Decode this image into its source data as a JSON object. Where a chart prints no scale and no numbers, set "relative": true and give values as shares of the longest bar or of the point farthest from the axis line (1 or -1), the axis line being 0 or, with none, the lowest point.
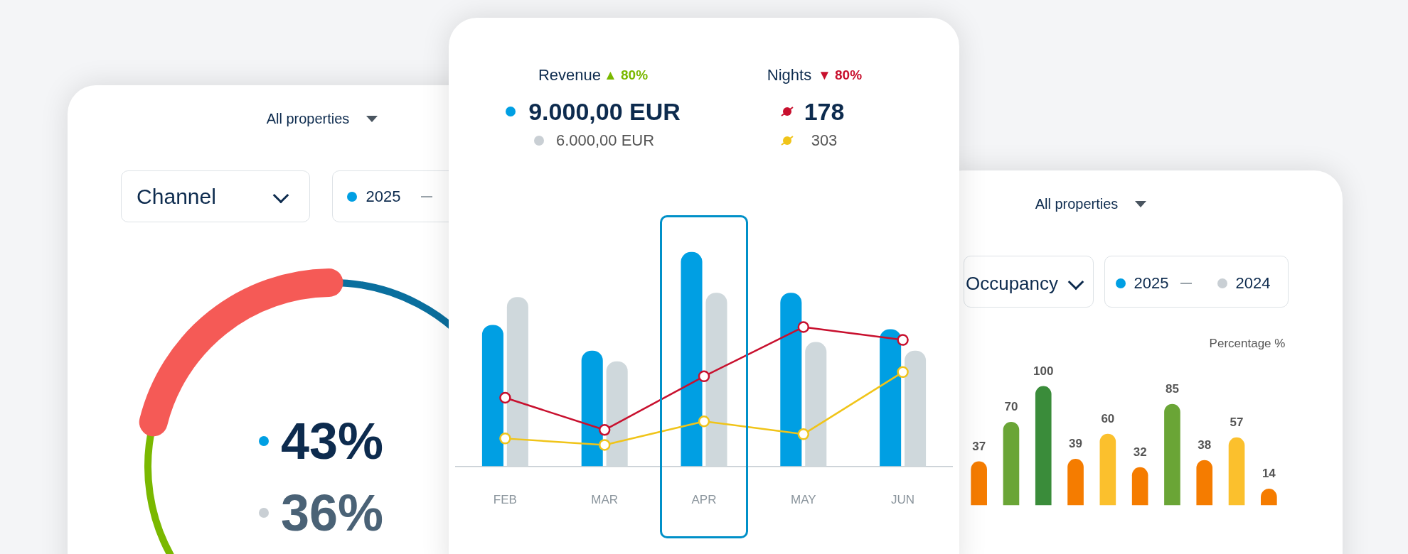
{
  "chart_data": [
    {
      "type": "other",
      "annotations": [
        "All properties",
        "Channel",
        "2025",
        "43%",
        "36%"
      ]
    },
    {
      "type": "bar",
      "relative": true,
      "marker": "circle",
      "categories": [
        "FEB",
        "MAR",
        "APR",
        "MAY",
        "JUN"
      ],
      "series": [
        {
          "color": "#009fe3",
          "values": [
            0.66,
            0.54,
            1,
            0.81,
            0.64
          ]
        },
        {
          "color": "#cfd8dc",
          "values": [
            0.79,
            0.49,
            0.81,
            0.58,
            0.54
          ]
        },
        {
          "type": "line",
          "color": "#c8102e",
          "values": [
            0.32,
            0.17,
            0.42,
            0.65,
            0.59
          ]
        },
        {
          "type": "line",
          "color": "#f0c419",
          "values": [
            0.13,
            0.1,
            0.21,
            0.15,
            0.44
          ]
        }
      ],
      "annotations": [
        "Revenue",
        "▲ 80%",
        "9.000,00 EUR",
        "6.000,00 EUR",
        "Nights",
        "▼ 80%",
        "178",
        "303"
      ]
    },
    {
      "type": "bar",
      "categories": [
        null,
        null,
        null,
        null,
        null,
        null,
        null,
        null,
        null,
        null
      ],
      "values": [
        37,
        70,
        100,
        39,
        60,
        32,
        85,
        38,
        57,
        14
      ],
      "colors": [
        "#f57c00",
        "#6aa536",
        "#3a8c3a",
        "#f57c00",
        "#fbc02d",
        "#f57c00",
        "#6aa536",
        "#f57c00",
        "#fbc02d",
        "#f57c00"
      ],
      "data_labels": true,
      "ylabel": "Percentage %",
      "annotations": [
        "All properties",
        "Occupancy",
        "2025",
        "2024"
      ]
    }
  ]
}
